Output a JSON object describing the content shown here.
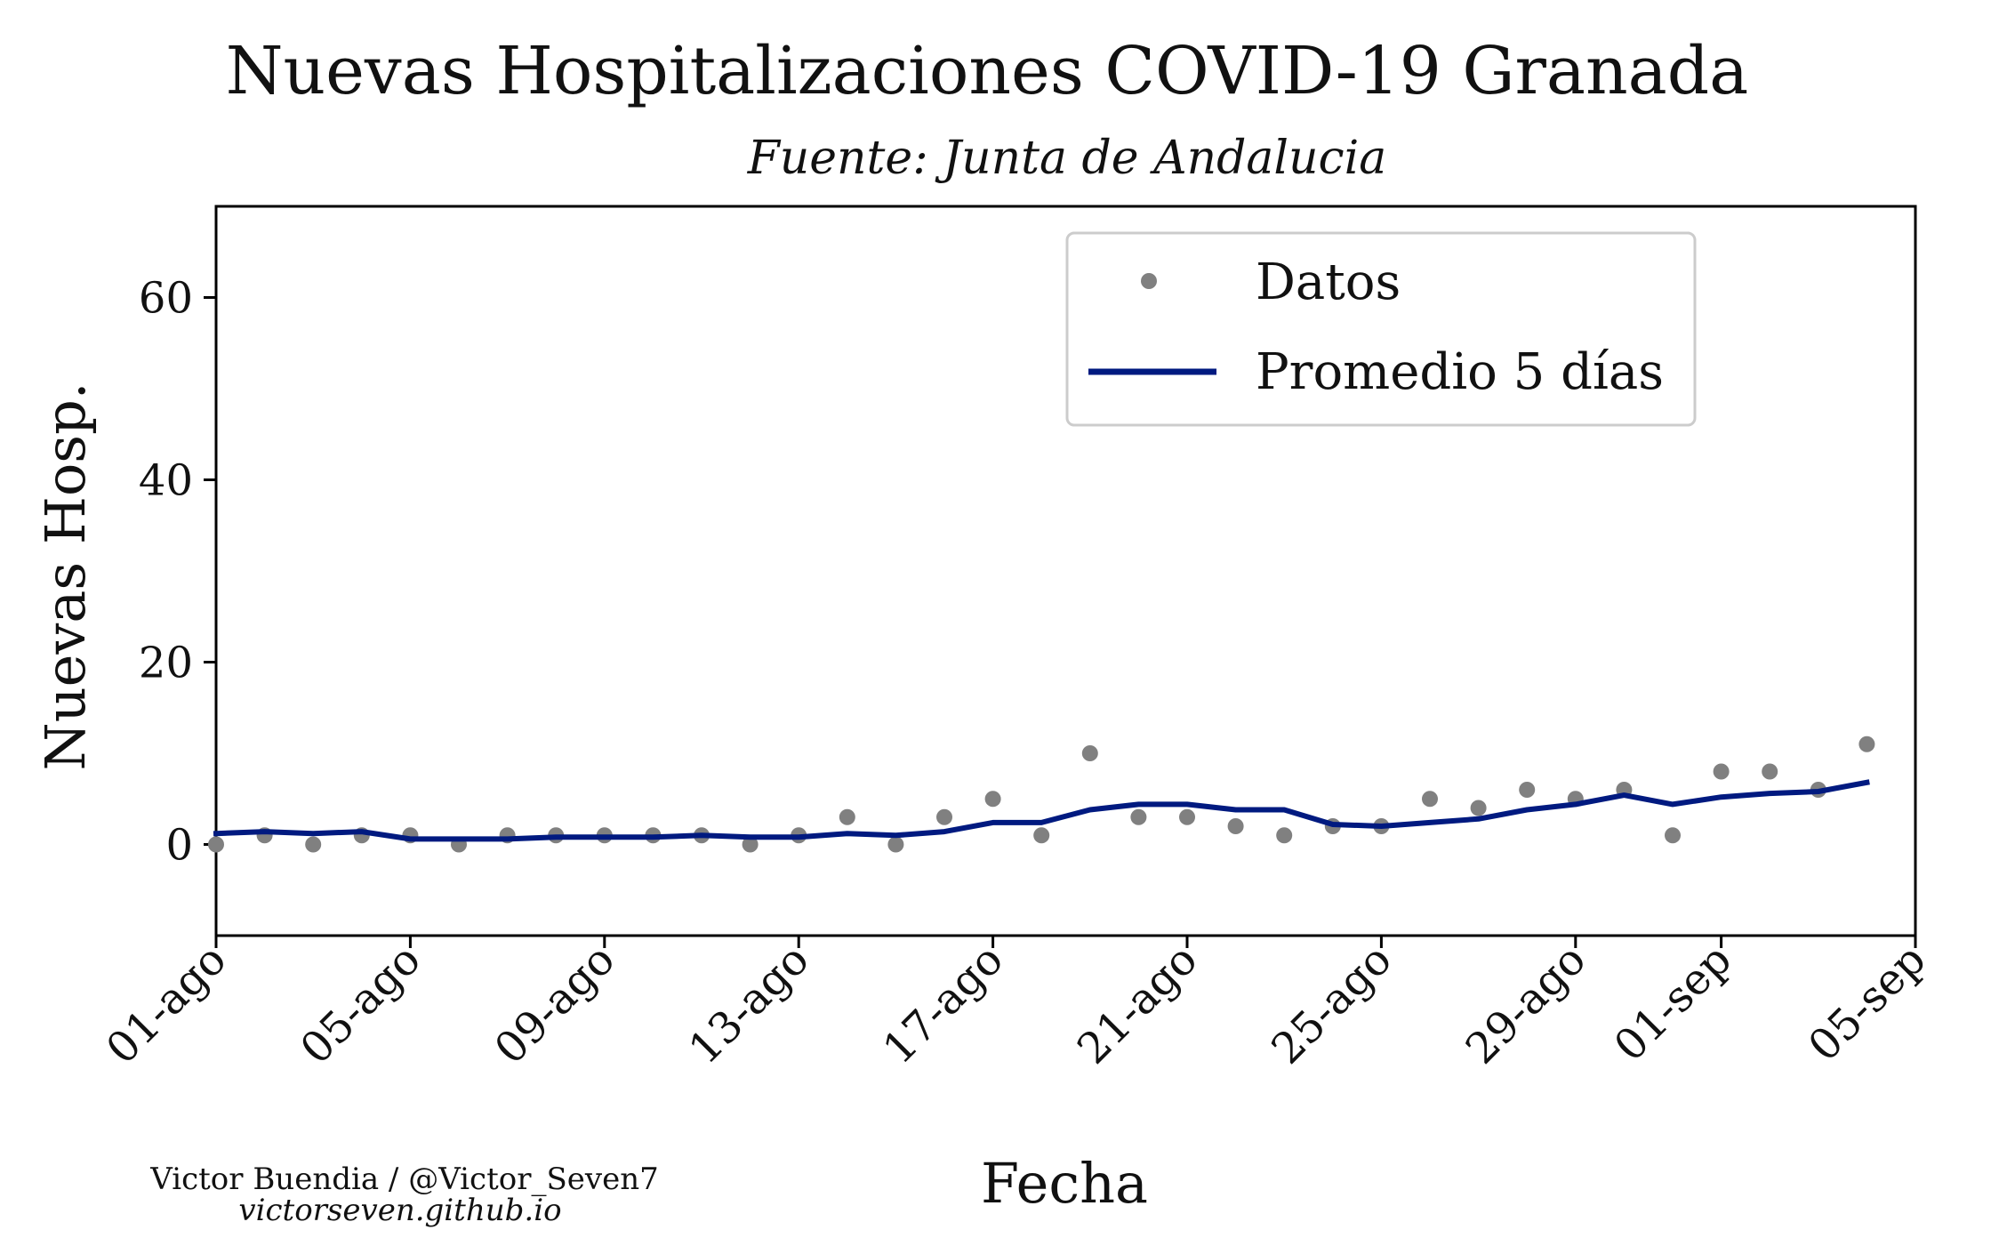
{
  "chart_data": {
    "type": "line",
    "title": "Nuevas Hospitalizaciones COVID-19 Granada",
    "subtitle": "Fuente: Junta de Andalucia",
    "xlabel": "Fecha",
    "ylabel": "Nuevas Hosp.",
    "ylim": [
      -10,
      70
    ],
    "yticks": [
      0,
      20,
      40,
      60
    ],
    "xlim": [
      "2020-08-01",
      "2020-09-05"
    ],
    "xticks": [
      {
        "date": "2020-08-01",
        "label": "01-ago"
      },
      {
        "date": "2020-08-05",
        "label": "05-ago"
      },
      {
        "date": "2020-08-09",
        "label": "09-ago"
      },
      {
        "date": "2020-08-13",
        "label": "13-ago"
      },
      {
        "date": "2020-08-17",
        "label": "17-ago"
      },
      {
        "date": "2020-08-21",
        "label": "21-ago"
      },
      {
        "date": "2020-08-25",
        "label": "25-ago"
      },
      {
        "date": "2020-08-29",
        "label": "29-ago"
      },
      {
        "date": "2020-09-01",
        "label": "01-sep"
      },
      {
        "date": "2020-09-05",
        "label": "05-sep"
      }
    ],
    "grid": false,
    "legend_position": "top-right",
    "x": [
      "2020-08-01",
      "2020-08-02",
      "2020-08-03",
      "2020-08-04",
      "2020-08-05",
      "2020-08-06",
      "2020-08-07",
      "2020-08-08",
      "2020-08-09",
      "2020-08-10",
      "2020-08-11",
      "2020-08-12",
      "2020-08-13",
      "2020-08-14",
      "2020-08-15",
      "2020-08-16",
      "2020-08-17",
      "2020-08-18",
      "2020-08-19",
      "2020-08-20",
      "2020-08-21",
      "2020-08-22",
      "2020-08-23",
      "2020-08-24",
      "2020-08-25",
      "2020-08-26",
      "2020-08-27",
      "2020-08-28",
      "2020-08-29",
      "2020-08-30",
      "2020-08-31",
      "2020-09-01",
      "2020-09-02",
      "2020-09-03",
      "2020-09-04"
    ],
    "series": [
      {
        "name": "Datos",
        "kind": "scatter",
        "color": "#808080",
        "values": [
          0,
          1,
          0,
          1,
          1,
          0,
          1,
          1,
          1,
          1,
          1,
          0,
          1,
          3,
          0,
          3,
          5,
          1,
          10,
          3,
          3,
          2,
          1,
          2,
          2,
          5,
          4,
          6,
          5,
          6,
          1,
          8,
          8,
          6,
          11
        ]
      },
      {
        "name": "Promedio 5 días",
        "kind": "line",
        "color": "#001a80",
        "values": [
          1.2,
          1.4,
          1.2,
          1.4,
          0.6,
          0.6,
          0.6,
          0.8,
          0.8,
          0.8,
          1.0,
          0.8,
          0.8,
          1.2,
          1.0,
          1.4,
          2.4,
          2.4,
          3.8,
          4.4,
          4.4,
          3.8,
          3.8,
          2.2,
          2.0,
          2.4,
          2.8,
          3.8,
          4.4,
          5.4,
          4.4,
          5.2,
          5.6,
          5.8,
          6.8
        ]
      }
    ]
  },
  "credit": {
    "author": "Victor Buendia / @Victor_Seven7",
    "url": "victorseven.github.io"
  }
}
